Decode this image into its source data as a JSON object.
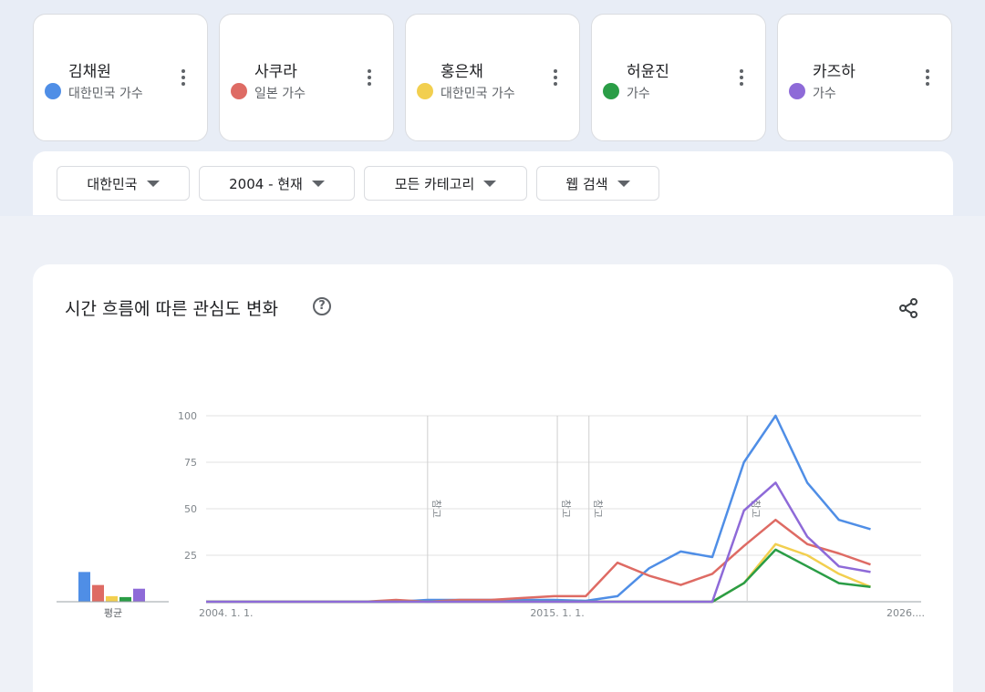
{
  "terms": [
    {
      "name": "김채원",
      "desc": "대한민국 가수",
      "color": "#4f8ee6"
    },
    {
      "name": "사쿠라",
      "desc": "일본 가수",
      "color": "#de6b64"
    },
    {
      "name": "홍은채",
      "desc": "대한민국 가수",
      "color": "#f2cf4f"
    },
    {
      "name": "허윤진",
      "desc": "가수",
      "color": "#2a9d46"
    },
    {
      "name": "카즈하",
      "desc": "가수",
      "color": "#8e6ad8"
    }
  ],
  "filters": {
    "region": "대한민국",
    "period": "2004 - 현재",
    "category": "모든 카테고리",
    "search_type": "웹 검색"
  },
  "chart_card": {
    "title": "시간 흐름에 따른 관심도 변화",
    "help_icon": "help-circle-icon",
    "share_icon": "share-icon"
  },
  "chart_data": {
    "type": "line",
    "x_tick_labels": [
      "2004. 1. 1.",
      "2015. 1. 1.",
      "2026...."
    ],
    "x_range": [
      2004,
      2026.6
    ],
    "ylim": [
      0,
      100
    ],
    "y_ticks": [
      25,
      50,
      75,
      100
    ],
    "annotation_text": "참고",
    "annotations_x": [
      2011.0,
      2015.1,
      2016.1,
      2021.1
    ],
    "average_label": "평균",
    "averages": [
      16,
      9,
      3,
      2.5,
      7
    ],
    "series": [
      {
        "name": "김채원",
        "color": "#4f8ee6",
        "x": [
          2004,
          2005,
          2006,
          2007,
          2008,
          2009,
          2010,
          2011,
          2012,
          2013,
          2014,
          2015,
          2016,
          2017,
          2018,
          2019,
          2020,
          2021,
          2022,
          2023,
          2024,
          2025,
          2026
        ],
        "y": [
          0,
          0,
          0,
          0,
          0,
          0,
          0,
          1,
          1,
          1,
          1,
          1,
          0.5,
          3,
          18,
          27,
          24,
          75,
          100,
          64,
          44,
          39,
          null
        ]
      },
      {
        "name": "사쿠라",
        "color": "#de6b64",
        "x": [
          2004,
          2005,
          2006,
          2007,
          2008,
          2009,
          2010,
          2011,
          2012,
          2013,
          2014,
          2015,
          2016,
          2017,
          2018,
          2019,
          2020,
          2021,
          2022,
          2023,
          2024,
          2025,
          2026
        ],
        "y": [
          0,
          0,
          0,
          0,
          0,
          0,
          1,
          0,
          1,
          1,
          2,
          3,
          3,
          21,
          14,
          9,
          15,
          30,
          44,
          31,
          26,
          20,
          null
        ]
      },
      {
        "name": "홍은채",
        "color": "#f2cf4f",
        "x": [
          2004,
          2005,
          2006,
          2007,
          2008,
          2009,
          2010,
          2011,
          2012,
          2013,
          2014,
          2015,
          2016,
          2017,
          2018,
          2019,
          2020,
          2021,
          2022,
          2023,
          2024,
          2025,
          2026
        ],
        "y": [
          0,
          0,
          0,
          0,
          0,
          0,
          0,
          0,
          0,
          0,
          0,
          0,
          0,
          0,
          0,
          0,
          0,
          10,
          31,
          25,
          15,
          8,
          null
        ]
      },
      {
        "name": "허윤진",
        "color": "#2a9d46",
        "x": [
          2004,
          2005,
          2006,
          2007,
          2008,
          2009,
          2010,
          2011,
          2012,
          2013,
          2014,
          2015,
          2016,
          2017,
          2018,
          2019,
          2020,
          2021,
          2022,
          2023,
          2024,
          2025,
          2026
        ],
        "y": [
          0,
          0,
          0,
          0,
          0,
          0,
          0,
          0,
          0,
          0,
          0,
          0,
          0,
          0,
          0,
          0,
          0,
          10,
          28,
          19,
          10,
          8,
          null
        ]
      },
      {
        "name": "카즈하",
        "color": "#8e6ad8",
        "x": [
          2004,
          2005,
          2006,
          2007,
          2008,
          2009,
          2010,
          2011,
          2012,
          2013,
          2014,
          2015,
          2016,
          2017,
          2018,
          2019,
          2020,
          2021,
          2022,
          2023,
          2024,
          2025,
          2026
        ],
        "y": [
          0,
          0,
          0,
          0,
          0,
          0,
          0,
          0,
          0,
          0,
          0,
          0,
          0,
          0,
          0,
          0,
          0,
          49,
          64,
          35,
          19,
          16,
          null
        ]
      }
    ]
  }
}
